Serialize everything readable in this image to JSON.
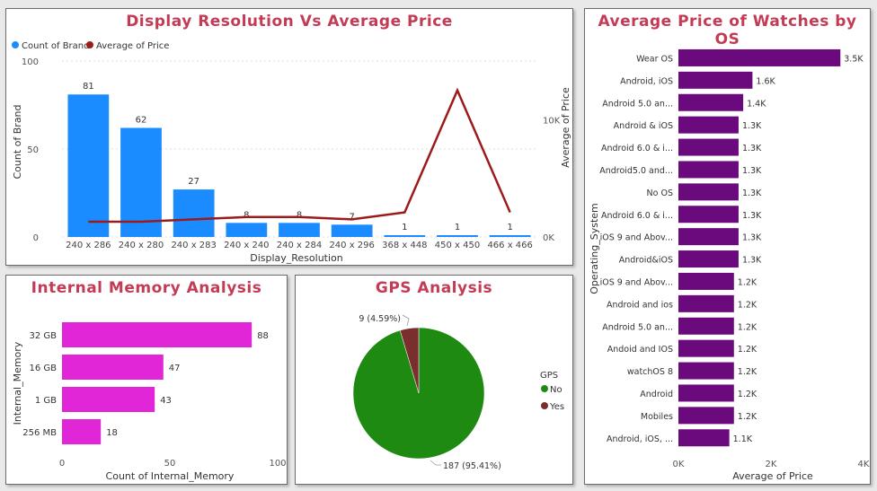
{
  "colors": {
    "count_bar": "#1a8cff",
    "avg_line": "#9b1b1b",
    "os_bar": "#6a0a7c",
    "memory_bar": "#e026d6",
    "gps_no": "#1f8a12",
    "gps_yes": "#7a2e2e",
    "title": "#c33b54"
  },
  "display_chart": {
    "title": "Display Resolution Vs Average Price",
    "chart_data": {
      "type": "bar+line",
      "categories": [
        "240 x 286",
        "240 x 280",
        "240 x 283",
        "240 x 240",
        "240 x 284",
        "240 x 296",
        "368 x 448",
        "450 x 450",
        "466 x 466"
      ],
      "series": [
        {
          "name": "Count of Brand",
          "type": "bar",
          "axis": "left",
          "values": [
            81,
            62,
            27,
            8,
            8,
            7,
            1,
            1,
            1
          ]
        },
        {
          "name": "Average of Price",
          "type": "line",
          "axis": "right",
          "values": [
            1300,
            1300,
            1500,
            1700,
            1700,
            1500,
            2100,
            12500,
            2100
          ]
        }
      ],
      "xlabel": "Display_Resolution",
      "ylabel": "Count of Brand",
      "y2label": "Average of Price",
      "ylim": [
        0,
        100
      ],
      "yticks": [
        "0",
        "50",
        "100"
      ],
      "y2lim": [
        0,
        15000
      ],
      "y2ticks": [
        {
          "value": 0,
          "label": "0K"
        },
        {
          "value": 10000,
          "label": "10K"
        }
      ],
      "data_labels": [
        "81",
        "62",
        "27",
        "8",
        "8",
        "7",
        "1",
        "1",
        "1"
      ],
      "legend": [
        "Count of Brand",
        "Average of Price"
      ],
      "legend_position": "top-left"
    }
  },
  "os_chart": {
    "title": "Average Price of Watches by OS",
    "chart_data": {
      "type": "bar",
      "orientation": "horizontal",
      "categories": [
        "Wear OS",
        "Android, iOS",
        "Android 5.0 an...",
        "Android & iOS",
        "Android 6.0 & i...",
        "Android5.0 and...",
        "No OS",
        "Android 6.0 & i...",
        "iOS 9 and Abov...",
        "Android&iOS",
        "iOS 9 and Abov...",
        "Android and ios",
        "Android 5.0 an...",
        "Andoid and IOS",
        "watchOS 8",
        "Android",
        "Mobiles",
        "Android, iOS, ..."
      ],
      "values": [
        3500,
        1600,
        1400,
        1300,
        1300,
        1300,
        1300,
        1300,
        1300,
        1300,
        1200,
        1200,
        1200,
        1200,
        1200,
        1200,
        1200,
        1100
      ],
      "data_labels": [
        "3.5K",
        "1.6K",
        "1.4K",
        "1.3K",
        "1.3K",
        "1.3K",
        "1.3K",
        "1.3K",
        "1.3K",
        "1.3K",
        "1.2K",
        "1.2K",
        "1.2K",
        "1.2K",
        "1.2K",
        "1.2K",
        "1.2K",
        "1.1K"
      ],
      "xlabel": "Average of Price",
      "ylabel": "Operating_System",
      "xlim": [
        0,
        4000
      ],
      "xticks": [
        {
          "value": 0,
          "label": "0K"
        },
        {
          "value": 2000,
          "label": "2K"
        },
        {
          "value": 4000,
          "label": "4K"
        }
      ]
    }
  },
  "memory_chart": {
    "title": "Internal Memory Analysis",
    "chart_data": {
      "type": "bar",
      "orientation": "horizontal",
      "categories": [
        "32 GB",
        "16 GB",
        "1 GB",
        "256 MB"
      ],
      "values": [
        88,
        47,
        43,
        18
      ],
      "data_labels": [
        "88",
        "47",
        "43",
        "18"
      ],
      "xlabel": "Count of Internal_Memory",
      "ylabel": "Internal_Memory",
      "xlim": [
        0,
        100
      ],
      "xticks": [
        "0",
        "50",
        "100"
      ]
    }
  },
  "gps_chart": {
    "title": "GPS Analysis",
    "chart_data": {
      "type": "pie",
      "slices": [
        {
          "label": "No",
          "value": 187,
          "percent": 95.41,
          "data_label": "187 (95.41%)"
        },
        {
          "label": "Yes",
          "value": 9,
          "percent": 4.59,
          "data_label": "9 (4.59%)"
        }
      ],
      "legend_title": "GPS",
      "legend": [
        "No",
        "Yes"
      ],
      "legend_position": "right"
    }
  }
}
